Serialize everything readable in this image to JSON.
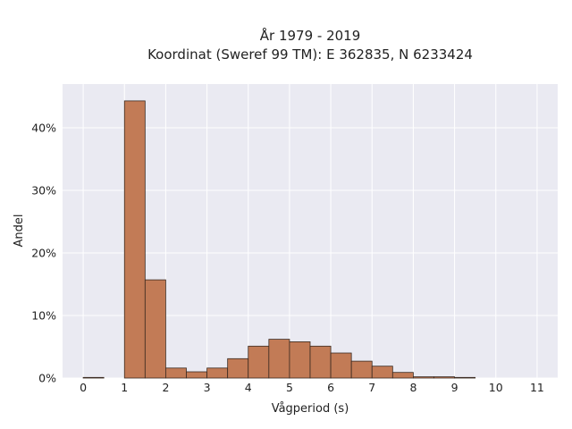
{
  "chart_data": {
    "type": "bar",
    "title": "År 1979 - 2019",
    "subtitle": "Koordinat (Sweref 99 TM): E 362835, N 6233424",
    "xlabel": "Vågperiod (s)",
    "ylabel": "Andel",
    "xlim": [
      -0.5,
      11.5
    ],
    "ylim": [
      0,
      0.47
    ],
    "x_ticks": [
      0,
      1,
      2,
      3,
      4,
      5,
      6,
      7,
      8,
      9,
      10,
      11
    ],
    "y_ticks": [
      0,
      0.1,
      0.2,
      0.3,
      0.4
    ],
    "y_tick_labels": [
      "0%",
      "10%",
      "20%",
      "30%",
      "40%"
    ],
    "bin_width": 0.5,
    "bins": [
      {
        "x0": 0.0,
        "x1": 0.5,
        "value": 0.001
      },
      {
        "x0": 0.5,
        "x1": 1.0,
        "value": 0.0
      },
      {
        "x0": 1.0,
        "x1": 1.5,
        "value": 0.443
      },
      {
        "x0": 1.5,
        "x1": 2.0,
        "value": 0.157
      },
      {
        "x0": 2.0,
        "x1": 2.5,
        "value": 0.016
      },
      {
        "x0": 2.5,
        "x1": 3.0,
        "value": 0.01
      },
      {
        "x0": 3.0,
        "x1": 3.5,
        "value": 0.016
      },
      {
        "x0": 3.5,
        "x1": 4.0,
        "value": 0.031
      },
      {
        "x0": 4.0,
        "x1": 4.5,
        "value": 0.051
      },
      {
        "x0": 4.5,
        "x1": 5.0,
        "value": 0.062
      },
      {
        "x0": 5.0,
        "x1": 5.5,
        "value": 0.058
      },
      {
        "x0": 5.5,
        "x1": 6.0,
        "value": 0.051
      },
      {
        "x0": 6.0,
        "x1": 6.5,
        "value": 0.04
      },
      {
        "x0": 6.5,
        "x1": 7.0,
        "value": 0.027
      },
      {
        "x0": 7.0,
        "x1": 7.5,
        "value": 0.019
      },
      {
        "x0": 7.5,
        "x1": 8.0,
        "value": 0.009
      },
      {
        "x0": 8.0,
        "x1": 8.5,
        "value": 0.002
      },
      {
        "x0": 8.5,
        "x1": 9.0,
        "value": 0.002
      },
      {
        "x0": 9.0,
        "x1": 9.5,
        "value": 0.001
      }
    ],
    "grid": true,
    "colors": {
      "bar_fill": "#c27b56",
      "bar_edge": "#3a2a20",
      "plot_background": "#eaeaf2",
      "grid": "#ffffff"
    }
  }
}
